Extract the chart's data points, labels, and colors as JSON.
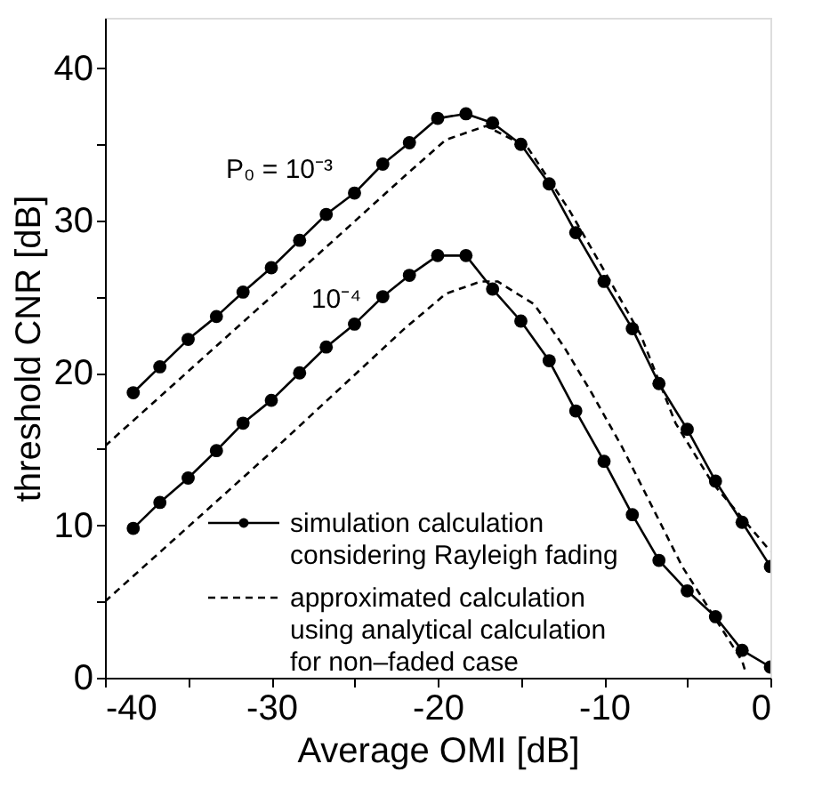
{
  "chart_data": {
    "type": "line",
    "xlabel": "Average OMI  [dB]",
    "ylabel": "threshold CNR [dB]",
    "xlim": [
      -40,
      0
    ],
    "ylim": [
      0,
      43.3
    ],
    "xticks": [
      -40,
      {
        "value": -35,
        "label": null
      },
      -30,
      {
        "value": -25,
        "label": null
      },
      -20,
      {
        "value": -15,
        "label": null
      },
      -10,
      {
        "value": -5,
        "label": null
      },
      0
    ],
    "yticks": [
      0,
      {
        "value": 5,
        "label": null
      },
      10,
      {
        "value": 15,
        "label": null
      },
      20,
      {
        "value": 25,
        "label": null
      },
      30,
      {
        "value": 35,
        "label": null
      },
      40
    ],
    "grid": false,
    "legend": "bottom right",
    "annotations": [
      "P₀ = 10⁻³",
      "10⁻⁴"
    ],
    "series": [
      {
        "name": "simulation calculation\nconsidering Rayleigh fading",
        "color": "#000000",
        "marker": "circle",
        "line_style": "solid",
        "x": [
          -38.3,
          -36.7,
          -35,
          -33.3,
          -31.7,
          -30,
          -28.3,
          -26.7,
          -25,
          -23.3,
          -21.7,
          -20,
          -18.3,
          -16.7,
          -15,
          -13.3,
          -11.7,
          -10,
          -8.3,
          -6.7,
          -5,
          -3.3,
          -1.7,
          0
        ],
        "values": [
          18.7,
          20.4,
          22.2,
          23.7,
          25.3,
          26.9,
          28.7,
          30.4,
          31.8,
          33.7,
          35.1,
          36.7,
          37.0,
          36.4,
          35.0,
          32.4,
          29.2,
          26.0,
          22.9,
          19.3,
          16.3,
          12.9,
          10.2,
          7.3
        ]
      },
      {
        "color": "#000000",
        "marker": "circle",
        "line_style": "solid",
        "x": [
          -38.3,
          -36.7,
          -35,
          -33.3,
          -31.7,
          -30,
          -28.3,
          -26.7,
          -25,
          -23.3,
          -21.7,
          -20,
          -18.3,
          -16.7,
          -15,
          -13.3,
          -11.7,
          -10,
          -8.3,
          -6.7,
          -5,
          -3.3,
          -1.7,
          0
        ],
        "values": [
          9.8,
          11.5,
          13.1,
          14.9,
          16.7,
          18.2,
          20.0,
          21.7,
          23.2,
          25.0,
          26.4,
          27.7,
          27.7,
          25.5,
          23.4,
          20.8,
          17.5,
          14.2,
          10.7,
          7.7,
          5.7,
          4.0,
          1.8,
          0.7
        ]
      },
      {
        "name": "approximated calculation\nusing analytical calculation\nfor non–faded case",
        "color": "#000000",
        "marker": "none",
        "line_style": "dashed",
        "x": [
          -40,
          -30,
          -22,
          -19.5,
          -17.1,
          -14.6,
          -12.1,
          -10.3,
          -7.8,
          -5.7,
          -3.5,
          -1.4,
          0
        ],
        "values": [
          15.2,
          25.0,
          32.9,
          35.3,
          36.2,
          34.8,
          30.7,
          27.3,
          22.5,
          16.7,
          12.8,
          10.1,
          8.3
        ]
      },
      {
        "color": "#000000",
        "marker": "none",
        "line_style": "dashed",
        "x": [
          -40,
          -30,
          -22,
          -19.5,
          -17.4,
          -16.4,
          -14.2,
          -12.4,
          -10.7,
          -8.9,
          -7.1,
          -5.3,
          -3.5,
          -1.7,
          -1.5
        ],
        "values": [
          5.0,
          14.8,
          22.9,
          25.2,
          26.0,
          26.0,
          24.5,
          21.7,
          18.6,
          15.1,
          11.2,
          7.3,
          4.2,
          1.1,
          0.4
        ]
      }
    ]
  }
}
